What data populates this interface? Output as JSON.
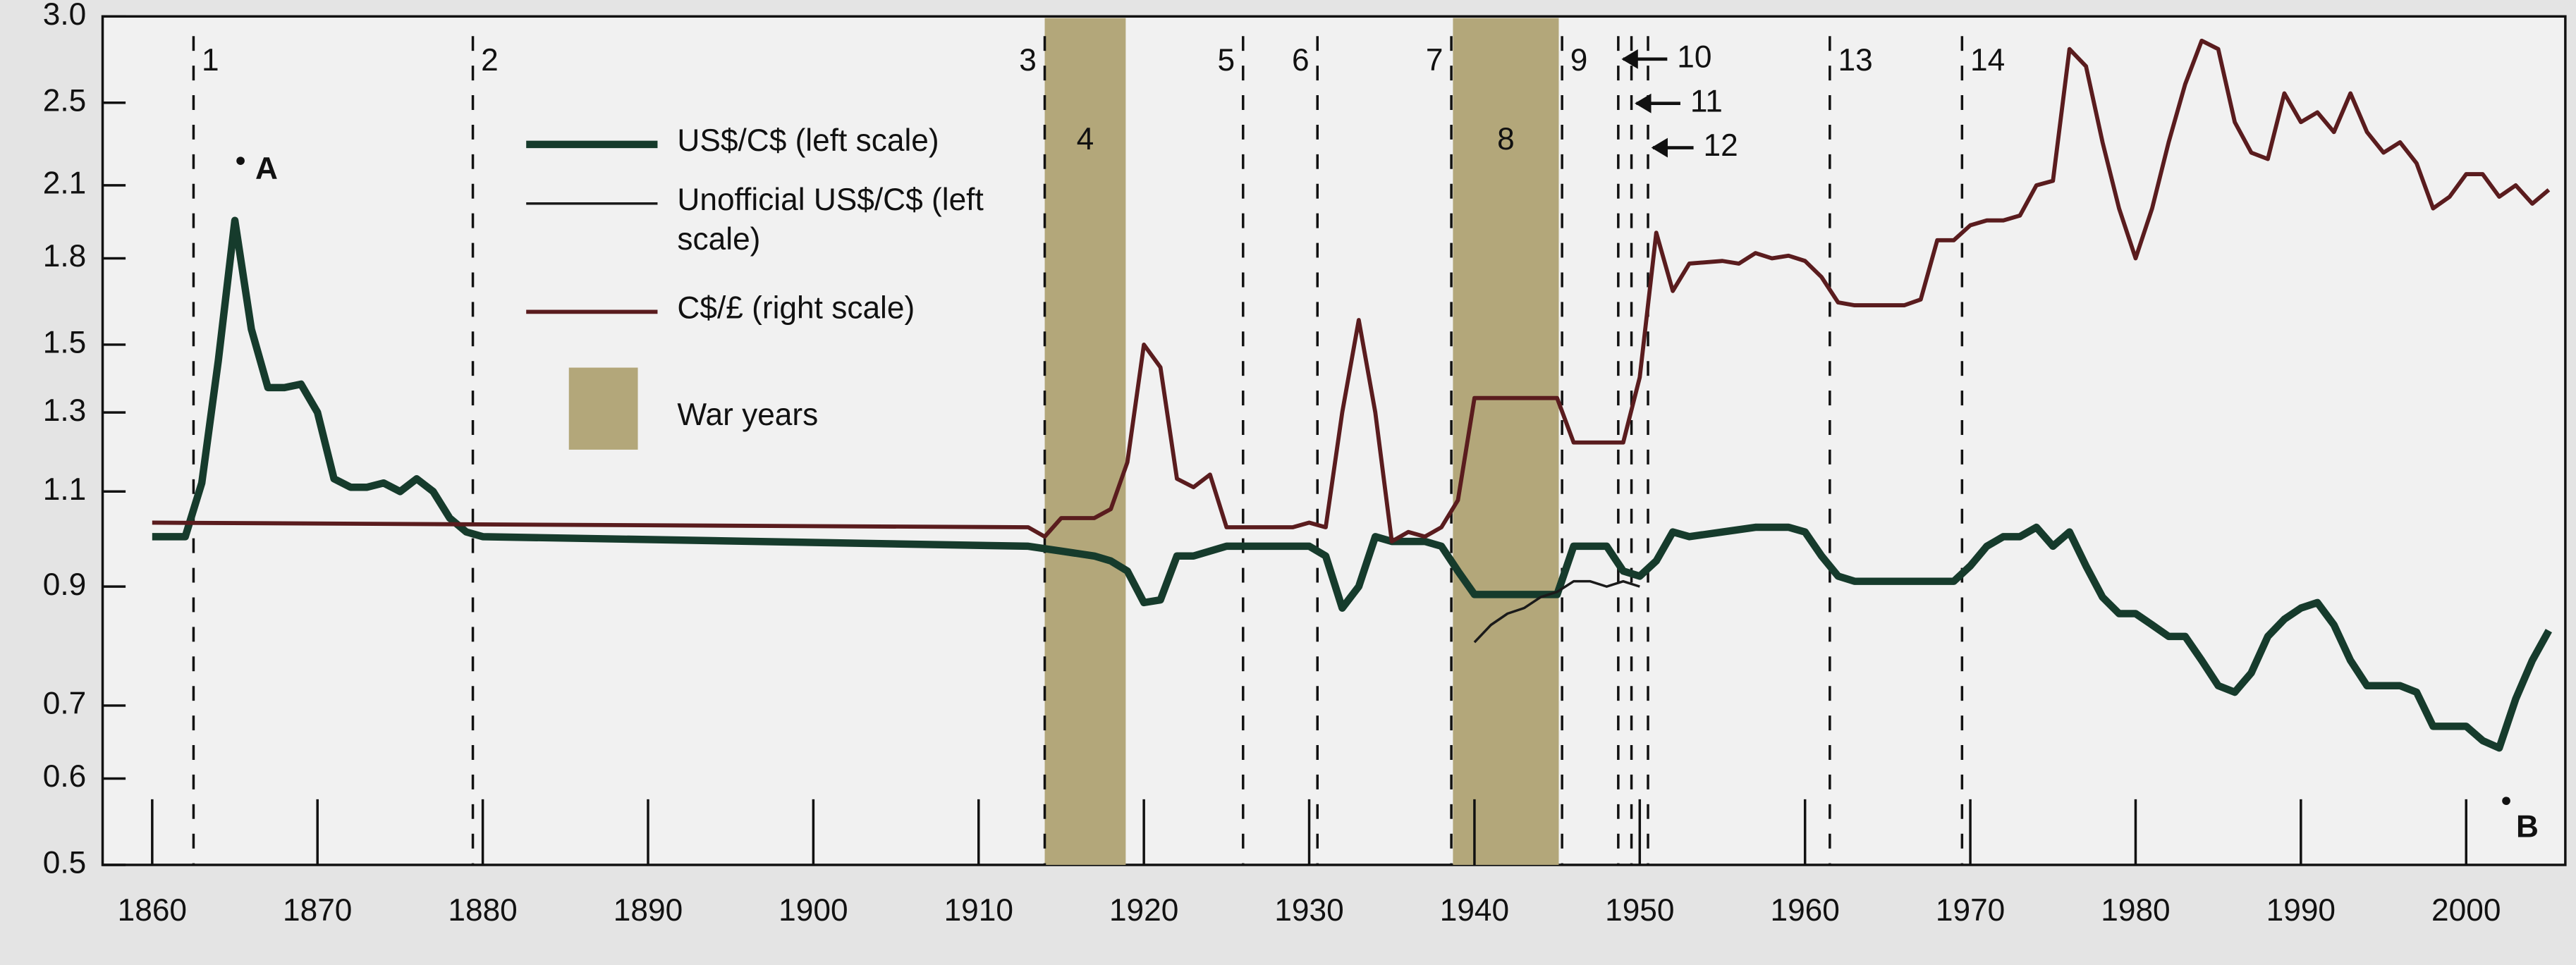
{
  "chart_data": {
    "type": "line",
    "log_y": true,
    "xlim": [
      1857,
      2006
    ],
    "xticks": [
      1860,
      1870,
      1880,
      1890,
      1900,
      1910,
      1920,
      1930,
      1940,
      1950,
      1960,
      1970,
      1980,
      1990,
      2000
    ],
    "ylim": [
      0.5,
      3.0
    ],
    "yticks": [
      0.5,
      0.6,
      0.7,
      0.9,
      1.1,
      1.3,
      1.5,
      1.8,
      2.1,
      2.5,
      {
        "value": 3.0,
        "label": "3.0"
      }
    ],
    "series": [
      {
        "name": "US$/C$ (left scale)",
        "color": "#163b2c",
        "x": [
          1860,
          1862,
          1863,
          1864,
          1865,
          1866,
          1867,
          1868,
          1869,
          1870,
          1871,
          1872,
          1873,
          1874,
          1875,
          1876,
          1877,
          1878,
          1879,
          1880,
          1913,
          1915,
          1917,
          1918,
          1919,
          1920,
          1921,
          1922,
          1923,
          1925,
          1930,
          1931,
          1932,
          1933,
          1934,
          1935,
          1936,
          1937,
          1938,
          1939,
          1940,
          1945,
          1946,
          1947,
          1948,
          1949,
          1950,
          1951,
          1952,
          1953,
          1955,
          1957,
          1958,
          1959,
          1960,
          1961,
          1962,
          1963,
          1969,
          1970,
          1971,
          1972,
          1973,
          1974,
          1975,
          1976,
          1977,
          1978,
          1979,
          1980,
          1981,
          1982,
          1983,
          1984,
          1985,
          1986,
          1987,
          1988,
          1989,
          1990,
          1991,
          1992,
          1993,
          1994,
          1995,
          1996,
          1997,
          1998,
          1999,
          2000,
          2001,
          2002,
          2003,
          2004,
          2005
        ],
        "values": [
          1.0,
          1.0,
          1.12,
          1.45,
          1.95,
          1.55,
          1.37,
          1.37,
          1.38,
          1.3,
          1.13,
          1.11,
          1.11,
          1.12,
          1.1,
          1.13,
          1.1,
          1.04,
          1.01,
          1.0,
          0.98,
          0.97,
          0.96,
          0.95,
          0.93,
          0.87,
          0.875,
          0.96,
          0.96,
          0.98,
          0.98,
          0.96,
          0.86,
          0.9,
          1.0,
          0.99,
          0.99,
          0.99,
          0.98,
          0.93,
          0.885,
          0.885,
          0.98,
          0.98,
          0.98,
          0.93,
          0.92,
          0.95,
          1.01,
          1.0,
          1.01,
          1.02,
          1.02,
          1.02,
          1.01,
          0.96,
          0.92,
          0.91,
          0.91,
          0.94,
          0.98,
          1.0,
          1.0,
          1.02,
          0.98,
          1.01,
          0.94,
          0.88,
          0.85,
          0.85,
          0.83,
          0.81,
          0.81,
          0.77,
          0.73,
          0.72,
          0.75,
          0.81,
          0.84,
          0.86,
          0.87,
          0.83,
          0.77,
          0.73,
          0.73,
          0.73,
          0.72,
          0.67,
          0.67,
          0.67,
          0.65,
          0.64,
          0.71,
          0.77,
          0.82
        ]
      },
      {
        "name": "Unofficial US$/C$ (left scale)",
        "color": "#1a1a1a",
        "x": [
          1940,
          1941,
          1942,
          1943,
          1944,
          1945,
          1946,
          1947,
          1948,
          1949,
          1950
        ],
        "values": [
          0.8,
          0.83,
          0.85,
          0.86,
          0.88,
          0.89,
          0.91,
          0.91,
          0.9,
          0.91,
          0.9
        ]
      },
      {
        "name": "C$/£ (right scale)",
        "color": "#5a1c1e",
        "x": [
          1860,
          1913,
          1914,
          1915,
          1917,
          1918,
          1919,
          1920,
          1921,
          1922,
          1923,
          1924,
          1925,
          1929,
          1930,
          1931,
          1932,
          1933,
          1934,
          1935,
          1936,
          1937,
          1938,
          1939,
          1940,
          1945,
          1946,
          1949,
          1950,
          1951,
          1952,
          1953,
          1955,
          1956,
          1957,
          1958,
          1959,
          1960,
          1961,
          1962,
          1963,
          1966,
          1967,
          1968,
          1969,
          1970,
          1971,
          1972,
          1973,
          1974,
          1975,
          1976,
          1977,
          1978,
          1979,
          1980,
          1981,
          1982,
          1983,
          1984,
          1985,
          1986,
          1987,
          1988,
          1989,
          1990,
          1991,
          1992,
          1993,
          1994,
          1995,
          1996,
          1997,
          1998,
          1999,
          2000,
          2001,
          2002,
          2003,
          2004,
          2005
        ],
        "values": [
          1.03,
          1.02,
          1.0,
          1.04,
          1.04,
          1.06,
          1.17,
          1.5,
          1.43,
          1.13,
          1.11,
          1.14,
          1.02,
          1.02,
          1.03,
          1.02,
          1.3,
          1.58,
          1.3,
          0.99,
          1.01,
          1.0,
          1.02,
          1.08,
          1.34,
          1.34,
          1.22,
          1.22,
          1.4,
          1.9,
          1.68,
          1.78,
          1.79,
          1.78,
          1.82,
          1.8,
          1.81,
          1.79,
          1.73,
          1.64,
          1.63,
          1.63,
          1.65,
          1.87,
          1.87,
          1.93,
          1.95,
          1.95,
          1.97,
          2.1,
          2.12,
          2.8,
          2.7,
          2.3,
          2.0,
          1.8,
          2.0,
          2.3,
          2.6,
          2.85,
          2.8,
          2.4,
          2.25,
          2.22,
          2.55,
          2.4,
          2.45,
          2.35,
          2.55,
          2.35,
          2.25,
          2.3,
          2.2,
          2.0,
          2.05,
          2.15,
          2.15,
          2.05,
          2.1,
          2.02,
          2.08
        ]
      }
    ],
    "shaded_name": "War years",
    "shaded_color": "#b3a77a",
    "shaded": [
      {
        "label": "4",
        "x": [
          1914,
          1918.9
        ]
      },
      {
        "label": "8",
        "x": [
          1938.7,
          1945.1
        ]
      }
    ],
    "events": [
      {
        "label": "1",
        "x": 1862.5
      },
      {
        "label": "2",
        "x": 1879.4
      },
      {
        "label": "3",
        "x": 1914
      },
      {
        "label": "5",
        "x": 1926
      },
      {
        "label": "6",
        "x": 1930.5
      },
      {
        "label": "7",
        "x": 1938.6
      },
      {
        "label": "9",
        "x": 1945.3
      },
      {
        "label": "10",
        "x": 1948.7
      },
      {
        "label": "11",
        "x": 1949.5
      },
      {
        "label": "12",
        "x": 1950.5
      },
      {
        "label": "13",
        "x": 1961.5
      },
      {
        "label": "14",
        "x": 1969.5
      }
    ],
    "annotations": [
      "A",
      "B"
    ]
  }
}
